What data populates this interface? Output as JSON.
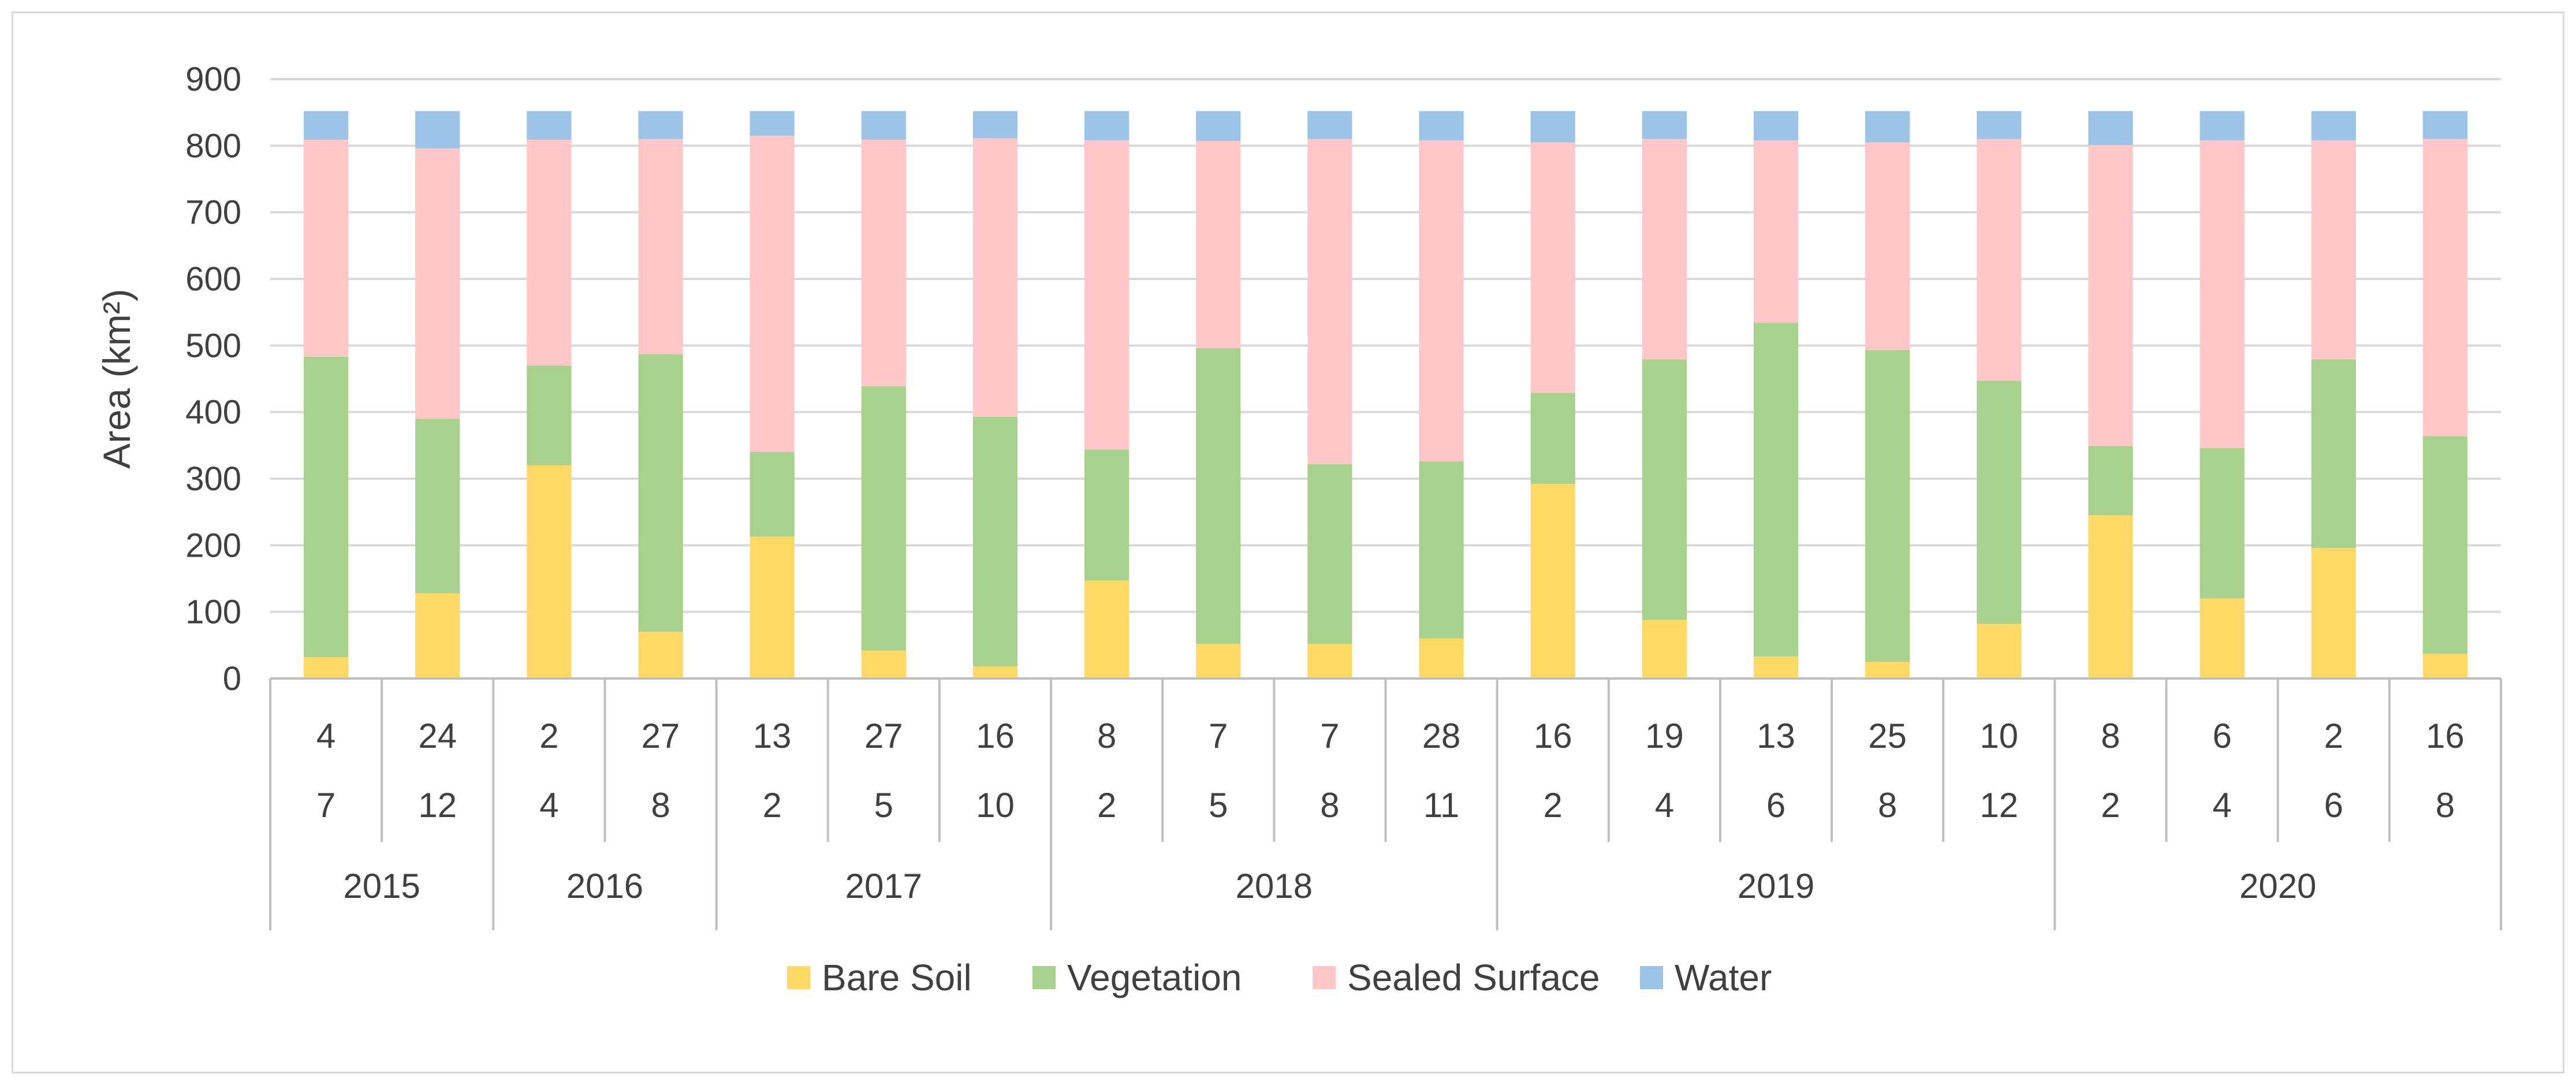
{
  "chart_data": {
    "type": "bar",
    "stacked": true,
    "title": "",
    "xlabel": "",
    "ylabel": "Area (km²)",
    "ylim": [
      0,
      900
    ],
    "yticks": [
      0,
      100,
      200,
      300,
      400,
      500,
      600,
      700,
      800,
      900
    ],
    "grid": true,
    "legend_position": "bottom",
    "categories": [
      {
        "top": "4",
        "mid": "7"
      },
      {
        "top": "24",
        "mid": "12"
      },
      {
        "top": "2",
        "mid": "4"
      },
      {
        "top": "27",
        "mid": "8"
      },
      {
        "top": "13",
        "mid": "2"
      },
      {
        "top": "27",
        "mid": "5"
      },
      {
        "top": "16",
        "mid": "10"
      },
      {
        "top": "8",
        "mid": "2"
      },
      {
        "top": "7",
        "mid": "5"
      },
      {
        "top": "7",
        "mid": "8"
      },
      {
        "top": "28",
        "mid": "11"
      },
      {
        "top": "16",
        "mid": "2"
      },
      {
        "top": "19",
        "mid": "4"
      },
      {
        "top": "13",
        "mid": "6"
      },
      {
        "top": "25",
        "mid": "8"
      },
      {
        "top": "10",
        "mid": "12"
      },
      {
        "top": "8",
        "mid": "2"
      },
      {
        "top": "6",
        "mid": "4"
      },
      {
        "top": "2",
        "mid": "6"
      },
      {
        "top": "16",
        "mid": "8"
      }
    ],
    "years": [
      {
        "label": "2015",
        "count": 2
      },
      {
        "label": "2016",
        "count": 2
      },
      {
        "label": "2017",
        "count": 3
      },
      {
        "label": "2018",
        "count": 4
      },
      {
        "label": "2019",
        "count": 5
      },
      {
        "label": "2020",
        "count": 4
      }
    ],
    "series": [
      {
        "name": "Bare Soil",
        "color": "#ffd966",
        "values": [
          32,
          128,
          320,
          70,
          213,
          42,
          18,
          147,
          52,
          52,
          60,
          292,
          88,
          33,
          25,
          82,
          245,
          120,
          196,
          37
        ]
      },
      {
        "name": "Vegetation",
        "color": "#a9d18e",
        "values": [
          451,
          262,
          150,
          417,
          127,
          397,
          375,
          197,
          444,
          270,
          266,
          137,
          391,
          501,
          468,
          365,
          104,
          226,
          283,
          327
        ]
      },
      {
        "name": "Sealed Surface",
        "color": "#ffc7c7",
        "values": [
          326,
          406,
          339,
          323,
          475,
          370,
          418,
          464,
          311,
          488,
          482,
          376,
          331,
          274,
          312,
          363,
          452,
          462,
          329,
          446
        ]
      },
      {
        "name": "Water",
        "color": "#9dc3e6",
        "values": [
          43,
          56,
          43,
          42,
          37,
          43,
          41,
          44,
          45,
          42,
          44,
          47,
          42,
          44,
          47,
          42,
          51,
          44,
          44,
          42
        ]
      }
    ],
    "colors": {
      "axis": "#bfbfbf",
      "grid": "#d9d9d9",
      "text": "#404040"
    }
  }
}
